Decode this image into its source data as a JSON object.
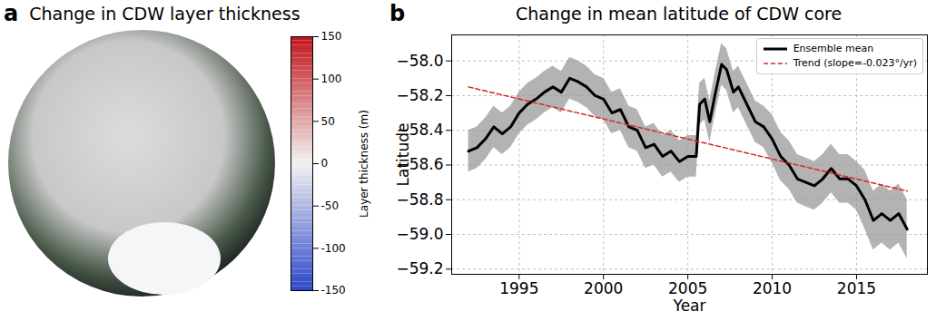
{
  "chart_data": [
    {
      "type": "map",
      "label": "a",
      "title": "Change in CDW layer thickness",
      "colorbar": {
        "label": "Layer thickness (m)",
        "range": [
          -150,
          150
        ],
        "ticks": [
          -150,
          -100,
          -50,
          0,
          50,
          100,
          150
        ],
        "colors": [
          "#2d47c8",
          "#f2f2f2",
          "#c0141c"
        ]
      }
    },
    {
      "type": "line",
      "label": "b",
      "title": "Change in mean latitude of CDW core",
      "x_label": "Year",
      "y_label": "Latitude",
      "xlim": [
        1991,
        2019.2
      ],
      "xticks": [
        1995,
        2000,
        2005,
        2010,
        2015
      ],
      "ylim": [
        -59.23,
        -57.85
      ],
      "yticks": [
        {
          "value": -59.2,
          "label": "−59.2"
        },
        {
          "value": -59,
          "label": "−59.0"
        },
        {
          "value": -58.8,
          "label": "−58.8"
        },
        {
          "value": -58.6,
          "label": "−58.6"
        },
        {
          "value": -58.4,
          "label": "−58.4"
        },
        {
          "value": -58.2,
          "label": "−58.2"
        },
        {
          "value": -58,
          "label": "−58.0"
        }
      ],
      "grid": true,
      "legend": "upper right",
      "series": [
        {
          "name": "Ensemble mean",
          "color": "#000000",
          "line_style": "solid",
          "x": [
            1992,
            1992.5,
            1993,
            1993.5,
            1994,
            1994.5,
            1995,
            1995.5,
            1996,
            1996.5,
            1997,
            1997.5,
            1998,
            1998.5,
            1999,
            1999.5,
            2000,
            2000.5,
            2001,
            2001.5,
            2002,
            2002.5,
            2003,
            2003.5,
            2004,
            2004.5,
            2005,
            2005.5,
            2005.7,
            2006,
            2006.3,
            2006.6,
            2007,
            2007.3,
            2007.7,
            2008,
            2008.5,
            2009,
            2009.5,
            2010,
            2010.5,
            2011,
            2011.5,
            2012,
            2012.5,
            2013,
            2013.5,
            2014,
            2014.5,
            2015,
            2015.5,
            2016,
            2016.5,
            2017,
            2017.5,
            2018
          ],
          "values": [
            -58.52,
            -58.5,
            -58.45,
            -58.38,
            -58.42,
            -58.38,
            -58.3,
            -58.25,
            -58.22,
            -58.18,
            -58.15,
            -58.18,
            -58.1,
            -58.12,
            -58.15,
            -58.2,
            -58.22,
            -58.3,
            -58.28,
            -58.38,
            -58.4,
            -58.5,
            -58.48,
            -58.55,
            -58.52,
            -58.58,
            -58.55,
            -58.55,
            -58.25,
            -58.22,
            -58.35,
            -58.2,
            -58.02,
            -58.05,
            -58.18,
            -58.15,
            -58.25,
            -58.35,
            -58.38,
            -58.45,
            -58.55,
            -58.6,
            -58.68,
            -58.7,
            -58.72,
            -58.68,
            -58.62,
            -58.68,
            -58.68,
            -58.72,
            -58.8,
            -58.92,
            -58.88,
            -58.92,
            -58.88,
            -58.97
          ],
          "band_color": "#999999",
          "lower": [
            -58.64,
            -58.62,
            -58.57,
            -58.5,
            -58.54,
            -58.5,
            -58.42,
            -58.37,
            -58.34,
            -58.3,
            -58.27,
            -58.3,
            -58.22,
            -58.24,
            -58.27,
            -58.32,
            -58.34,
            -58.42,
            -58.4,
            -58.5,
            -58.52,
            -58.62,
            -58.6,
            -58.67,
            -58.64,
            -58.7,
            -58.67,
            -58.67,
            -58.37,
            -58.34,
            -58.47,
            -58.32,
            -58.14,
            -58.17,
            -58.3,
            -58.27,
            -58.37,
            -58.47,
            -58.5,
            -58.59,
            -58.69,
            -58.74,
            -58.82,
            -58.84,
            -58.86,
            -58.82,
            -58.76,
            -58.82,
            -58.82,
            -58.86,
            -58.97,
            -59.09,
            -59.05,
            -59.09,
            -59.05,
            -59.14
          ],
          "upper": [
            -58.4,
            -58.38,
            -58.33,
            -58.26,
            -58.3,
            -58.26,
            -58.18,
            -58.13,
            -58.1,
            -58.06,
            -58.03,
            -58.06,
            -57.98,
            -58.0,
            -58.03,
            -58.08,
            -58.1,
            -58.18,
            -58.16,
            -58.26,
            -58.28,
            -58.38,
            -58.36,
            -58.43,
            -58.4,
            -58.46,
            -58.43,
            -58.43,
            -58.13,
            -58.1,
            -58.23,
            -58.08,
            -57.9,
            -57.93,
            -58.06,
            -58.03,
            -58.13,
            -58.23,
            -58.26,
            -58.31,
            -58.41,
            -58.46,
            -58.54,
            -58.56,
            -58.58,
            -58.54,
            -58.48,
            -58.54,
            -58.54,
            -58.58,
            -58.63,
            -58.75,
            -58.71,
            -58.75,
            -58.71,
            -58.8
          ]
        },
        {
          "name": "Trend (slope=-0.023°/yr)",
          "color": "#d62728",
          "line_style": "dashed",
          "x": [
            1992,
            2018
          ],
          "values": [
            -58.15,
            -58.75
          ]
        }
      ]
    }
  ]
}
